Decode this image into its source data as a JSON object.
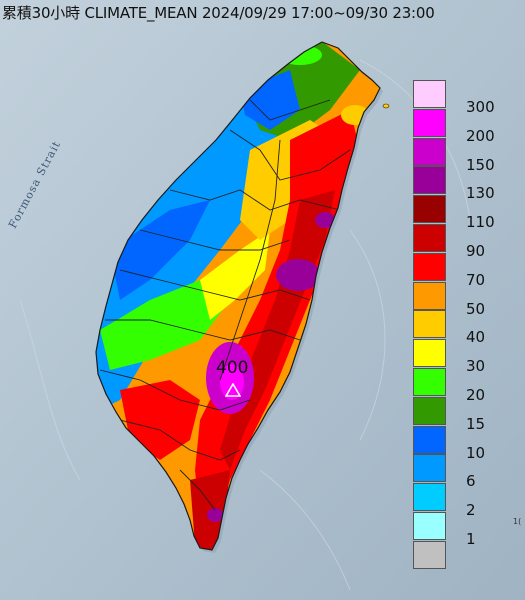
{
  "map": {
    "title": "累積30小時 CLIMATE_MEAN 2024/09/29 17:00~09/30 23:00",
    "water_label": "Formosa Strait",
    "peak_value": "400",
    "corner_text": "1("
  },
  "legend": {
    "levels": [
      {
        "label": "300",
        "color": "#ffccff"
      },
      {
        "label": "200",
        "color": "#ff00ff"
      },
      {
        "label": "150",
        "color": "#cc00cc"
      },
      {
        "label": "130",
        "color": "#990099"
      },
      {
        "label": "110",
        "color": "#990000"
      },
      {
        "label": "90",
        "color": "#cc0000"
      },
      {
        "label": "70",
        "color": "#ff0000"
      },
      {
        "label": "50",
        "color": "#ff9900"
      },
      {
        "label": "40",
        "color": "#ffcc00"
      },
      {
        "label": "30",
        "color": "#ffff00"
      },
      {
        "label": "20",
        "color": "#33ff00"
      },
      {
        "label": "15",
        "color": "#339900"
      },
      {
        "label": "10",
        "color": "#0066ff"
      },
      {
        "label": "6",
        "color": "#0099ff"
      },
      {
        "label": "2",
        "color": "#00ccff"
      },
      {
        "label": "1",
        "color": "#99ffff"
      },
      {
        "label": "",
        "color": "#c0c0c0"
      }
    ]
  },
  "colors": {
    "sea": "#b8c9d6",
    "sea_dark": "#a9bccb",
    "boundary": "#222222"
  }
}
